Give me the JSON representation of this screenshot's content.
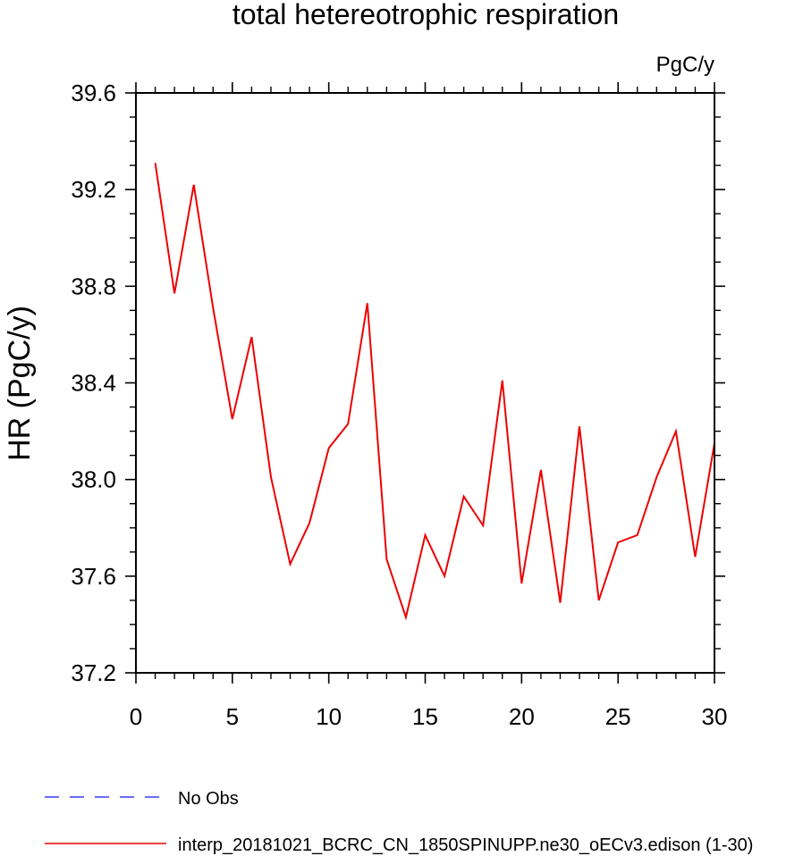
{
  "chart_data": {
    "type": "line",
    "title": "total hetereotrophic respiration",
    "units_label": "PgC/y",
    "ylabel": "HR  (PgC/y)",
    "xlabel": "",
    "xlim": [
      0,
      30
    ],
    "ylim": [
      37.2,
      39.6
    ],
    "x_ticks": [
      0,
      5,
      10,
      15,
      20,
      25,
      30
    ],
    "y_ticks": [
      37.2,
      37.6,
      38.0,
      38.4,
      38.8,
      39.2,
      39.6
    ],
    "y_tick_labels": [
      "37.2",
      "37.6",
      "38.0",
      "38.4",
      "38.8",
      "39.2",
      "39.6"
    ],
    "grid": false,
    "legend_position": "bottom-left",
    "legend": [
      {
        "label": "No Obs",
        "color": "#3a3af0",
        "style": "dashed"
      },
      {
        "label": "interp_20181021_BCRC_CN_1850SPINUPP.ne30_oECv3.edison (1-30)",
        "color": "#ee0000",
        "style": "solid"
      }
    ],
    "series": [
      {
        "name": "interp_20181021_BCRC_CN_1850SPINUPP.ne30_oECv3.edison (1-30)",
        "color": "#ee0000",
        "x": [
          1,
          2,
          3,
          4,
          5,
          6,
          7,
          8,
          9,
          10,
          11,
          12,
          13,
          14,
          15,
          16,
          17,
          18,
          19,
          20,
          21,
          22,
          23,
          24,
          25,
          26,
          27,
          28,
          29,
          30
        ],
        "y": [
          39.31,
          38.77,
          39.22,
          38.71,
          38.25,
          38.59,
          38.01,
          37.65,
          37.82,
          38.13,
          38.23,
          38.73,
          37.67,
          37.43,
          37.77,
          37.6,
          37.93,
          37.81,
          38.41,
          37.57,
          38.04,
          37.49,
          38.22,
          37.5,
          37.74,
          37.77,
          38.01,
          38.2,
          37.68,
          38.15
        ]
      }
    ]
  }
}
